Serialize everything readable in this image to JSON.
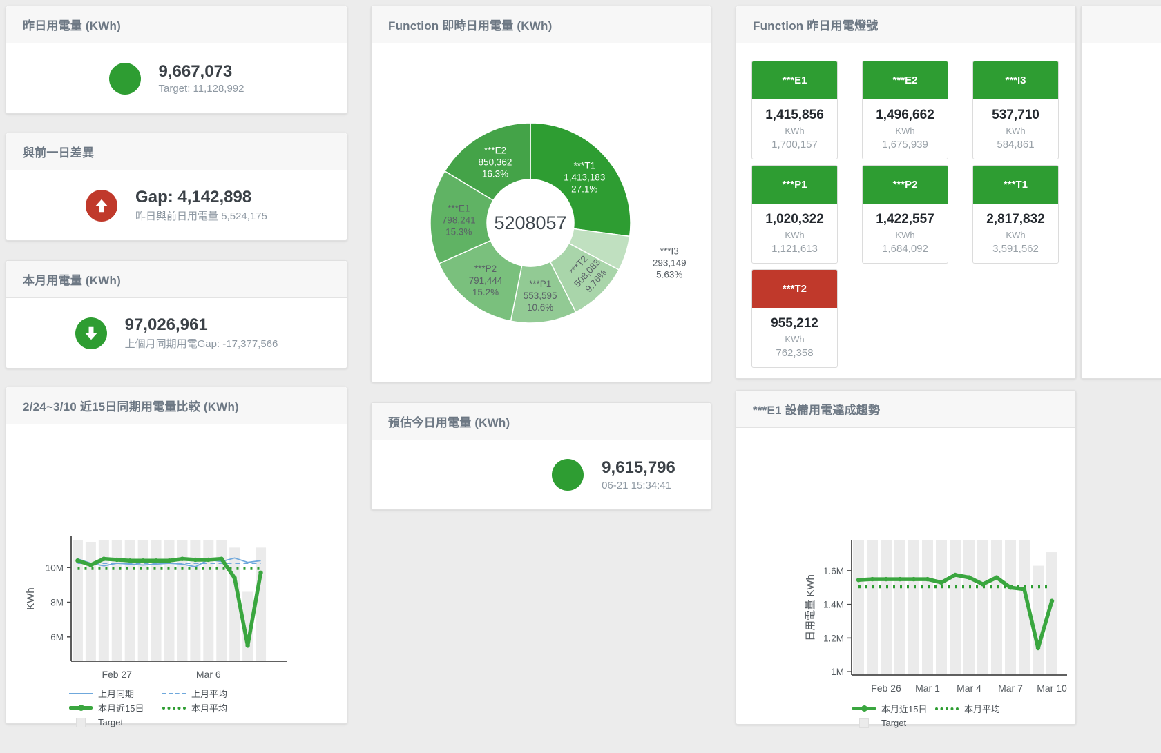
{
  "colors": {
    "green": "#2e9d32",
    "red": "#c0392b",
    "blue": "#6fa8dc",
    "line_green": "#3aa63f",
    "bar_gray": "#ebebeb",
    "axis": "#4a4a4a"
  },
  "cards": {
    "yesterday": {
      "title": "昨日用電量 (KWh)",
      "value": "9,667,073",
      "subtitle": "Target: 11,128,992"
    },
    "day_gap": {
      "title": "與前一日差異",
      "value": "Gap: 4,142,898",
      "subtitle": "昨日與前日用電量 5,524,175"
    },
    "month": {
      "title": "本月用電量 (KWh)",
      "value": "97,026,961",
      "subtitle": "上個月同期用電Gap: -17,377,566"
    },
    "realtime_donut": {
      "title": "Function 即時日用電量 (KWh)"
    },
    "estimate": {
      "title": "預估今日用電量 (KWh)",
      "value": "9,615,796",
      "subtitle": "06-21 15:34:41"
    },
    "lights": {
      "title": "Function 昨日用電燈號"
    },
    "compare": {
      "title": "2/24~3/10 近15日同期用電量比較 (KWh)"
    },
    "trend": {
      "title": "***E1 設備用電達成趨勢"
    }
  },
  "lights_tiles": [
    {
      "name": "***E1",
      "value": "1,415,856",
      "unit": "KWh",
      "target": "1,700,157",
      "status": "green"
    },
    {
      "name": "***E2",
      "value": "1,496,662",
      "unit": "KWh",
      "target": "1,675,939",
      "status": "green"
    },
    {
      "name": "***I3",
      "value": "537,710",
      "unit": "KWh",
      "target": "584,861",
      "status": "green"
    },
    {
      "name": "***P1",
      "value": "1,020,322",
      "unit": "KWh",
      "target": "1,121,613",
      "status": "green"
    },
    {
      "name": "***P2",
      "value": "1,422,557",
      "unit": "KWh",
      "target": "1,684,092",
      "status": "green"
    },
    {
      "name": "***T1",
      "value": "2,817,832",
      "unit": "KWh",
      "target": "3,591,562",
      "status": "green"
    },
    {
      "name": "***T2",
      "value": "955,212",
      "unit": "KWh",
      "target": "762,358",
      "status": "red"
    }
  ],
  "chart_data": [
    {
      "id": "donut",
      "type": "pie",
      "title": "Function 即時日用電量 (KWh)",
      "center_label": "5208057",
      "unit": "KWh",
      "segments": [
        {
          "name": "***T1",
          "value": 1413183,
          "value_label": "1,413,183",
          "pct": "27.1%",
          "color": "#2e9d32",
          "text": "#ffffff"
        },
        {
          "name": "***I3",
          "value": 293149,
          "value_label": "293,149",
          "pct": "5.63%",
          "color": "#c0e0c0",
          "text": "#5a6167",
          "outside": true
        },
        {
          "name": "***T2",
          "value": 508083,
          "value_label": "508,083",
          "pct": "9.76%",
          "color": "#a9d5aa",
          "text": "#5a6167",
          "rotate": -48
        },
        {
          "name": "***P1",
          "value": 553595,
          "value_label": "553,595",
          "pct": "10.6%",
          "color": "#92ca94",
          "text": "#5a6167"
        },
        {
          "name": "***P2",
          "value": 791444,
          "value_label": "791,444",
          "pct": "15.2%",
          "color": "#7ac07d",
          "text": "#5a6167"
        },
        {
          "name": "***E1",
          "value": 798241,
          "value_label": "798,241",
          "pct": "15.3%",
          "color": "#60b364",
          "text": "#5a6167"
        },
        {
          "name": "***E2",
          "value": 850362,
          "value_label": "850,362",
          "pct": "16.3%",
          "color": "#44a348",
          "text": "#ffffff"
        }
      ]
    },
    {
      "id": "compare",
      "type": "line",
      "title": "2/24~3/10 近15日同期用電量比較 (KWh)",
      "ylabel": "KWh",
      "unit": "millions of KWh",
      "categories": [
        "2/24",
        "2/25",
        "2/26",
        "2/27",
        "2/28",
        "3/1",
        "3/2",
        "3/3",
        "3/4",
        "3/5",
        "3/6",
        "3/7",
        "3/8",
        "3/9",
        "3/10"
      ],
      "ylim": [
        4.6,
        11.8
      ],
      "yticks": [
        {
          "v": 6,
          "label": "6M"
        },
        {
          "v": 8,
          "label": "8M"
        },
        {
          "v": 10,
          "label": "10M"
        }
      ],
      "xlabels": [
        {
          "i": 3,
          "label": "Feb 27"
        },
        {
          "i": 10,
          "label": "Mar 6"
        }
      ],
      "target": [
        11.6,
        11.45,
        11.6,
        11.6,
        11.6,
        11.6,
        11.6,
        11.6,
        11.6,
        11.6,
        11.6,
        11.6,
        11.15,
        8.6,
        11.15
      ],
      "series": [
        {
          "name": "上月平均",
          "style": "dashed",
          "color": "#6fa8dc",
          "constant": 10.25
        },
        {
          "name": "上月同期",
          "style": "thin",
          "color": "#6fa8dc",
          "values": [
            10.5,
            10.25,
            10.1,
            10.25,
            10.2,
            10.15,
            10.2,
            10.25,
            10.2,
            10.05,
            10.45,
            10.35,
            10.55,
            10.3,
            10.4
          ]
        },
        {
          "name": "本月平均",
          "style": "dotted",
          "color": "#2e9d32",
          "constant": 9.95
        },
        {
          "name": "本月近15日",
          "style": "thick",
          "color": "#3aa63f",
          "values": [
            10.4,
            10.15,
            10.5,
            10.45,
            10.4,
            10.4,
            10.4,
            10.4,
            10.5,
            10.45,
            10.45,
            10.5,
            9.4,
            5.5,
            9.7
          ]
        }
      ],
      "legend": [
        {
          "label": "上月同期",
          "swatch": "thin-blue"
        },
        {
          "label": "上月平均",
          "swatch": "dash-blue"
        },
        {
          "label": "本月近15日",
          "swatch": "thick-green"
        },
        {
          "label": "本月平均",
          "swatch": "dot-green"
        },
        {
          "label": "Target",
          "swatch": "square-gray"
        }
      ]
    },
    {
      "id": "trend",
      "type": "line",
      "title": "***E1 設備用電達成趨勢",
      "ylabel": "日用電量 KWh",
      "unit": "millions of KWh",
      "categories": [
        "2/24",
        "2/25",
        "2/26",
        "2/27",
        "2/28",
        "3/1",
        "3/2",
        "3/3",
        "3/4",
        "3/5",
        "3/6",
        "3/7",
        "3/8",
        "3/9",
        "3/10"
      ],
      "ylim": [
        0.98,
        1.78
      ],
      "yticks": [
        {
          "v": 1,
          "label": "1M"
        },
        {
          "v": 1.2,
          "label": "1.2M"
        },
        {
          "v": 1.4,
          "label": "1.4M"
        },
        {
          "v": 1.6,
          "label": "1.6M"
        }
      ],
      "xlabels": [
        {
          "i": 2,
          "label": "Feb 26"
        },
        {
          "i": 5,
          "label": "Mar 1"
        },
        {
          "i": 8,
          "label": "Mar 4"
        },
        {
          "i": 11,
          "label": "Mar 7"
        },
        {
          "i": 14,
          "label": "Mar 10"
        }
      ],
      "target": [
        1.78,
        1.78,
        1.78,
        1.78,
        1.78,
        1.78,
        1.78,
        1.78,
        1.78,
        1.78,
        1.78,
        1.78,
        1.78,
        1.63,
        1.71
      ],
      "series": [
        {
          "name": "本月平均",
          "style": "dotted",
          "color": "#2e9d32",
          "constant": 1.505
        },
        {
          "name": "本月近15日",
          "style": "thick",
          "color": "#3aa63f",
          "values": [
            1.545,
            1.55,
            1.55,
            1.55,
            1.55,
            1.55,
            1.53,
            1.575,
            1.56,
            1.52,
            1.56,
            1.5,
            1.49,
            1.14,
            1.42
          ]
        }
      ],
      "legend": [
        {
          "label": "本月近15日",
          "swatch": "thick-green"
        },
        {
          "label": "本月平均",
          "swatch": "dot-green"
        },
        {
          "label": "Target",
          "swatch": "square-gray"
        }
      ]
    }
  ]
}
